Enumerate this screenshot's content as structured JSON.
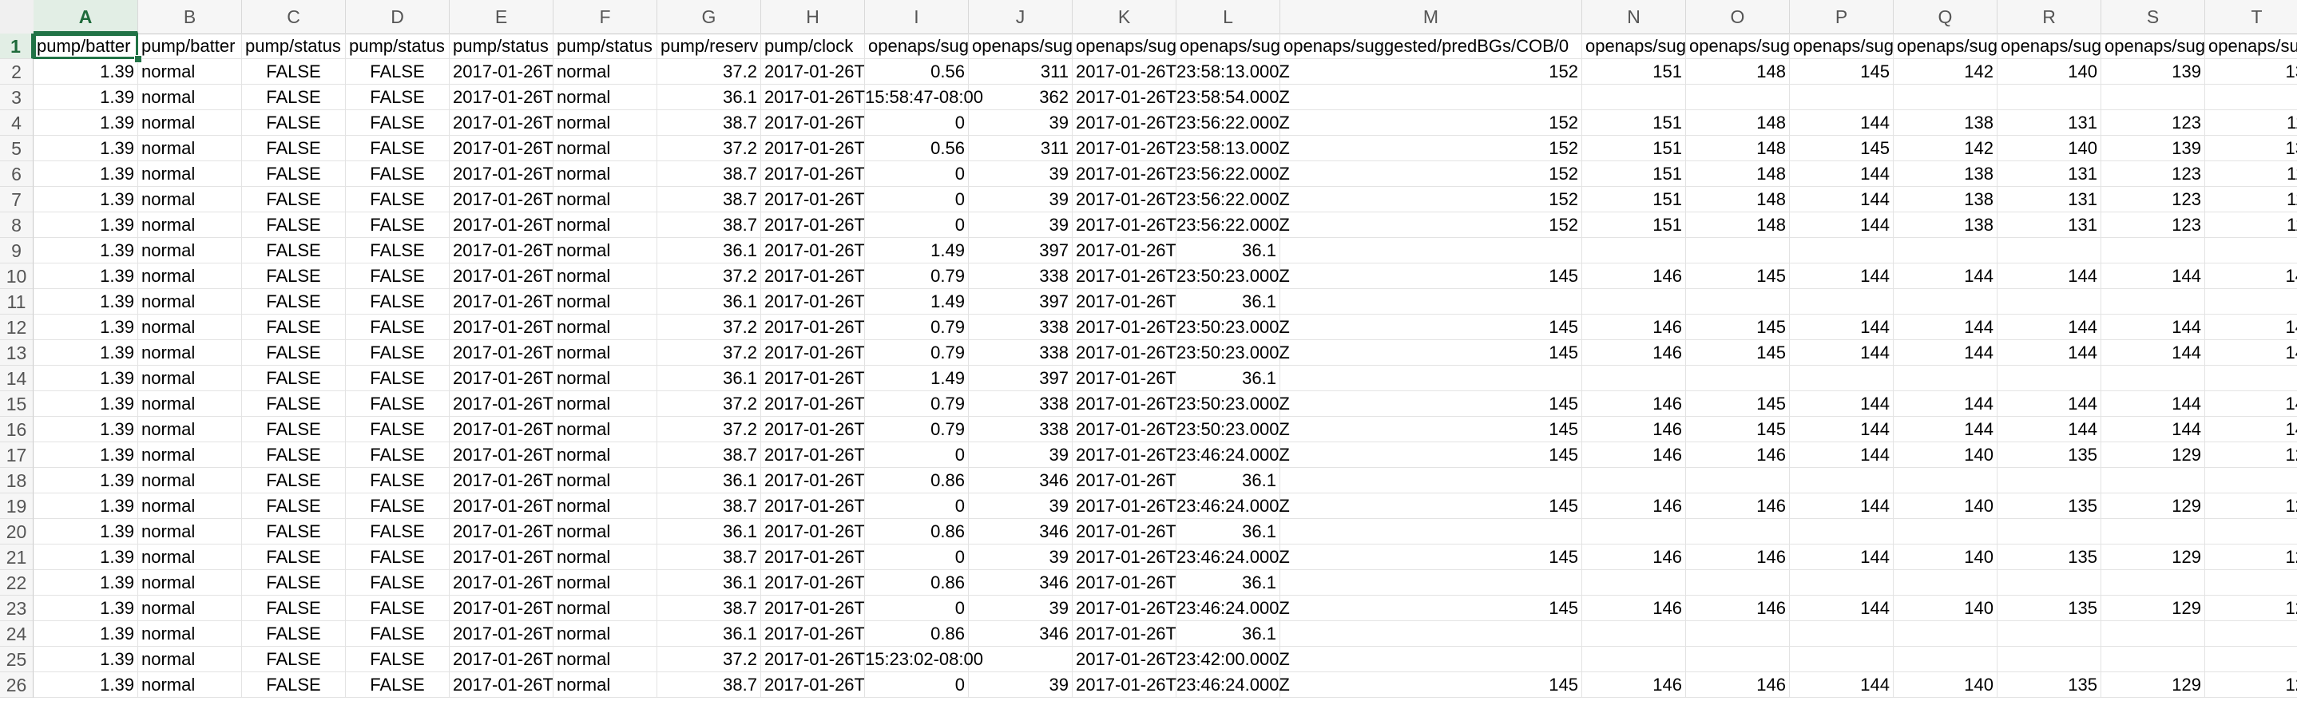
{
  "columns": [
    "A",
    "B",
    "C",
    "D",
    "E",
    "F",
    "G",
    "H",
    "I",
    "J",
    "K",
    "L",
    "M",
    "N",
    "O",
    "P",
    "Q",
    "R",
    "S",
    "T"
  ],
  "active_column": "A",
  "active_row": "1",
  "header_row": {
    "number": "1",
    "cells": [
      "pump/batter",
      "pump/batter",
      "pump/status",
      "pump/status",
      "pump/status",
      "pump/status",
      "pump/reserv",
      "pump/clock",
      "openaps/sug",
      "openaps/sug",
      "openaps/sug",
      "openaps/sug",
      "openaps/suggested/predBGs/COB/0",
      "openaps/sug",
      "openaps/sug",
      "openaps/sug",
      "openaps/sug",
      "openaps/sug",
      "openaps/sug",
      "openaps/su"
    ]
  },
  "rows": [
    {
      "number": "2",
      "cells": [
        "1.39",
        "normal",
        "FALSE",
        "FALSE",
        "2017-01-26T",
        "normal",
        "37.2",
        "2017-01-26T",
        "0.56",
        "311",
        "2017-01-26T23:58:13.000Z",
        "",
        "152",
        "151",
        "148",
        "145",
        "142",
        "140",
        "139",
        "13"
      ]
    },
    {
      "number": "3",
      "cells": [
        "1.39",
        "normal",
        "FALSE",
        "FALSE",
        "2017-01-26T",
        "normal",
        "36.1",
        "2017-01-26T15:58:47-08:00",
        "",
        "362",
        "2017-01-26T23:58:54.000Z",
        "",
        "",
        "",
        "",
        "",
        "",
        "",
        "",
        ""
      ]
    },
    {
      "number": "4",
      "cells": [
        "1.39",
        "normal",
        "FALSE",
        "FALSE",
        "2017-01-26T",
        "normal",
        "38.7",
        "2017-01-26T",
        "0",
        "39",
        "2017-01-26T23:56:22.000Z",
        "",
        "152",
        "151",
        "148",
        "144",
        "138",
        "131",
        "123",
        "11"
      ]
    },
    {
      "number": "5",
      "cells": [
        "1.39",
        "normal",
        "FALSE",
        "FALSE",
        "2017-01-26T",
        "normal",
        "37.2",
        "2017-01-26T",
        "0.56",
        "311",
        "2017-01-26T23:58:13.000Z",
        "",
        "152",
        "151",
        "148",
        "145",
        "142",
        "140",
        "139",
        "13"
      ]
    },
    {
      "number": "6",
      "cells": [
        "1.39",
        "normal",
        "FALSE",
        "FALSE",
        "2017-01-26T",
        "normal",
        "38.7",
        "2017-01-26T",
        "0",
        "39",
        "2017-01-26T23:56:22.000Z",
        "",
        "152",
        "151",
        "148",
        "144",
        "138",
        "131",
        "123",
        "11"
      ]
    },
    {
      "number": "7",
      "cells": [
        "1.39",
        "normal",
        "FALSE",
        "FALSE",
        "2017-01-26T",
        "normal",
        "38.7",
        "2017-01-26T",
        "0",
        "39",
        "2017-01-26T23:56:22.000Z",
        "",
        "152",
        "151",
        "148",
        "144",
        "138",
        "131",
        "123",
        "11"
      ]
    },
    {
      "number": "8",
      "cells": [
        "1.39",
        "normal",
        "FALSE",
        "FALSE",
        "2017-01-26T",
        "normal",
        "38.7",
        "2017-01-26T",
        "0",
        "39",
        "2017-01-26T23:56:22.000Z",
        "",
        "152",
        "151",
        "148",
        "144",
        "138",
        "131",
        "123",
        "11"
      ]
    },
    {
      "number": "9",
      "cells": [
        "1.39",
        "normal",
        "FALSE",
        "FALSE",
        "2017-01-26T",
        "normal",
        "36.1",
        "2017-01-26T",
        "1.49",
        "397",
        "2017-01-26T",
        "36.1",
        "",
        "",
        "",
        "",
        "",
        "",
        "",
        ""
      ]
    },
    {
      "number": "10",
      "cells": [
        "1.39",
        "normal",
        "FALSE",
        "FALSE",
        "2017-01-26T",
        "normal",
        "37.2",
        "2017-01-26T",
        "0.79",
        "338",
        "2017-01-26T23:50:23.000Z",
        "",
        "145",
        "146",
        "145",
        "144",
        "144",
        "144",
        "144",
        "14"
      ]
    },
    {
      "number": "11",
      "cells": [
        "1.39",
        "normal",
        "FALSE",
        "FALSE",
        "2017-01-26T",
        "normal",
        "36.1",
        "2017-01-26T",
        "1.49",
        "397",
        "2017-01-26T",
        "36.1",
        "",
        "",
        "",
        "",
        "",
        "",
        "",
        ""
      ]
    },
    {
      "number": "12",
      "cells": [
        "1.39",
        "normal",
        "FALSE",
        "FALSE",
        "2017-01-26T",
        "normal",
        "37.2",
        "2017-01-26T",
        "0.79",
        "338",
        "2017-01-26T23:50:23.000Z",
        "",
        "145",
        "146",
        "145",
        "144",
        "144",
        "144",
        "144",
        "14"
      ]
    },
    {
      "number": "13",
      "cells": [
        "1.39",
        "normal",
        "FALSE",
        "FALSE",
        "2017-01-26T",
        "normal",
        "37.2",
        "2017-01-26T",
        "0.79",
        "338",
        "2017-01-26T23:50:23.000Z",
        "",
        "145",
        "146",
        "145",
        "144",
        "144",
        "144",
        "144",
        "14"
      ]
    },
    {
      "number": "14",
      "cells": [
        "1.39",
        "normal",
        "FALSE",
        "FALSE",
        "2017-01-26T",
        "normal",
        "36.1",
        "2017-01-26T",
        "1.49",
        "397",
        "2017-01-26T",
        "36.1",
        "",
        "",
        "",
        "",
        "",
        "",
        "",
        ""
      ]
    },
    {
      "number": "15",
      "cells": [
        "1.39",
        "normal",
        "FALSE",
        "FALSE",
        "2017-01-26T",
        "normal",
        "37.2",
        "2017-01-26T",
        "0.79",
        "338",
        "2017-01-26T23:50:23.000Z",
        "",
        "145",
        "146",
        "145",
        "144",
        "144",
        "144",
        "144",
        "14"
      ]
    },
    {
      "number": "16",
      "cells": [
        "1.39",
        "normal",
        "FALSE",
        "FALSE",
        "2017-01-26T",
        "normal",
        "37.2",
        "2017-01-26T",
        "0.79",
        "338",
        "2017-01-26T23:50:23.000Z",
        "",
        "145",
        "146",
        "145",
        "144",
        "144",
        "144",
        "144",
        "14"
      ]
    },
    {
      "number": "17",
      "cells": [
        "1.39",
        "normal",
        "FALSE",
        "FALSE",
        "2017-01-26T",
        "normal",
        "38.7",
        "2017-01-26T",
        "0",
        "39",
        "2017-01-26T23:46:24.000Z",
        "",
        "145",
        "146",
        "146",
        "144",
        "140",
        "135",
        "129",
        "12"
      ]
    },
    {
      "number": "18",
      "cells": [
        "1.39",
        "normal",
        "FALSE",
        "FALSE",
        "2017-01-26T",
        "normal",
        "36.1",
        "2017-01-26T",
        "0.86",
        "346",
        "2017-01-26T",
        "36.1",
        "",
        "",
        "",
        "",
        "",
        "",
        "",
        ""
      ]
    },
    {
      "number": "19",
      "cells": [
        "1.39",
        "normal",
        "FALSE",
        "FALSE",
        "2017-01-26T",
        "normal",
        "38.7",
        "2017-01-26T",
        "0",
        "39",
        "2017-01-26T23:46:24.000Z",
        "",
        "145",
        "146",
        "146",
        "144",
        "140",
        "135",
        "129",
        "12"
      ]
    },
    {
      "number": "20",
      "cells": [
        "1.39",
        "normal",
        "FALSE",
        "FALSE",
        "2017-01-26T",
        "normal",
        "36.1",
        "2017-01-26T",
        "0.86",
        "346",
        "2017-01-26T",
        "36.1",
        "",
        "",
        "",
        "",
        "",
        "",
        "",
        ""
      ]
    },
    {
      "number": "21",
      "cells": [
        "1.39",
        "normal",
        "FALSE",
        "FALSE",
        "2017-01-26T",
        "normal",
        "38.7",
        "2017-01-26T",
        "0",
        "39",
        "2017-01-26T23:46:24.000Z",
        "",
        "145",
        "146",
        "146",
        "144",
        "140",
        "135",
        "129",
        "12"
      ]
    },
    {
      "number": "22",
      "cells": [
        "1.39",
        "normal",
        "FALSE",
        "FALSE",
        "2017-01-26T",
        "normal",
        "36.1",
        "2017-01-26T",
        "0.86",
        "346",
        "2017-01-26T",
        "36.1",
        "",
        "",
        "",
        "",
        "",
        "",
        "",
        ""
      ]
    },
    {
      "number": "23",
      "cells": [
        "1.39",
        "normal",
        "FALSE",
        "FALSE",
        "2017-01-26T",
        "normal",
        "38.7",
        "2017-01-26T",
        "0",
        "39",
        "2017-01-26T23:46:24.000Z",
        "",
        "145",
        "146",
        "146",
        "144",
        "140",
        "135",
        "129",
        "12"
      ]
    },
    {
      "number": "24",
      "cells": [
        "1.39",
        "normal",
        "FALSE",
        "FALSE",
        "2017-01-26T",
        "normal",
        "36.1",
        "2017-01-26T",
        "0.86",
        "346",
        "2017-01-26T",
        "36.1",
        "",
        "",
        "",
        "",
        "",
        "",
        "",
        ""
      ]
    },
    {
      "number": "25",
      "cells": [
        "1.39",
        "normal",
        "FALSE",
        "FALSE",
        "2017-01-26T",
        "normal",
        "37.2",
        "2017-01-26T15:23:02-08:00",
        "",
        "",
        "2017-01-26T23:42:00.000Z",
        "",
        "",
        "",
        "",
        "",
        "",
        "",
        "",
        ""
      ]
    },
    {
      "number": "26",
      "cells": [
        "1.39",
        "normal",
        "FALSE",
        "FALSE",
        "2017-01-26T",
        "normal",
        "38.7",
        "2017-01-26T",
        "0",
        "39",
        "2017-01-26T23:46:24.000Z",
        "",
        "145",
        "146",
        "146",
        "144",
        "140",
        "135",
        "129",
        "12"
      ]
    }
  ],
  "colors": {
    "selection": "#217346",
    "grid": "#e3e3e3",
    "header_bg": "#f6f6f6"
  }
}
